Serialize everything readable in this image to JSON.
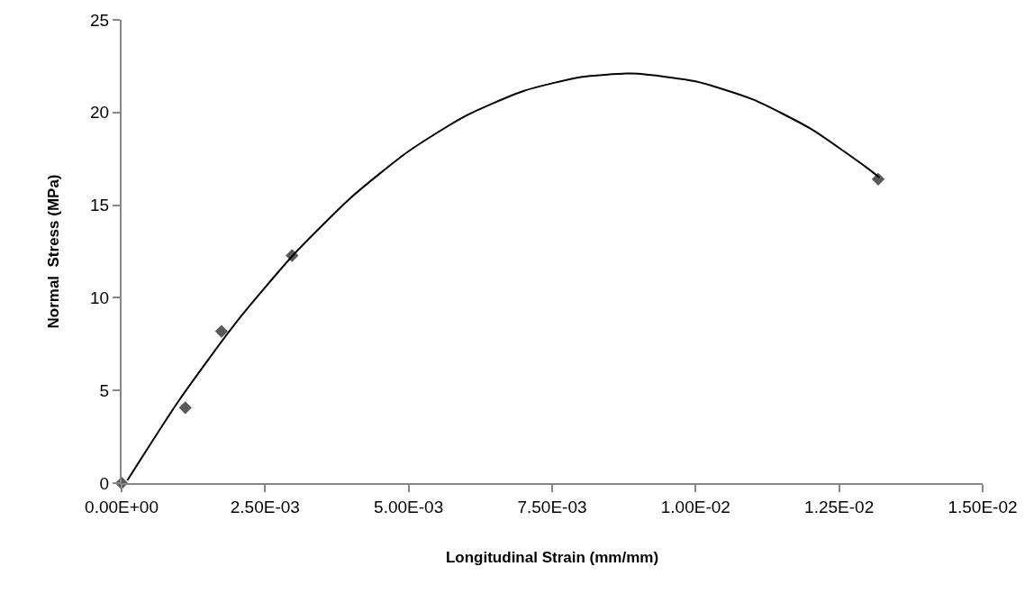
{
  "chart_data": {
    "type": "scatter",
    "xlabel": "Longitudinal Strain (mm/mm)",
    "ylabel": "Normal  Stress (MPa)",
    "series": [
      {
        "color": "#595959",
        "marker": "diamond",
        "x": [
          0,
          0.00111,
          0.00174,
          0.00297,
          0.01318
        ],
        "values": [
          0,
          4.07,
          8.19,
          12.28,
          16.4
        ]
      },
      {
        "type": "line",
        "color": "#000000",
        "marker": "none",
        "line_style": "solid",
        "x": [
          0.0001,
          0.001,
          0.002,
          0.003,
          0.004,
          0.005,
          0.006,
          0.007,
          0.008,
          0.0088,
          0.009,
          0.01,
          0.011,
          0.012,
          0.013,
          0.0132
        ],
        "values": [
          0.15,
          4.46,
          8.69,
          12.34,
          15.42,
          17.91,
          19.83,
          21.16,
          21.91,
          22.1,
          22.09,
          21.68,
          20.7,
          19.13,
          16.98,
          16.49
        ]
      }
    ],
    "xlim": [
      0,
      0.015
    ],
    "xticks": [
      {
        "value": 0,
        "label": "0.00E+00"
      },
      {
        "value": 0.0025,
        "label": "2.50E-03"
      },
      {
        "value": 0.005,
        "label": "5.00E-03"
      },
      {
        "value": 0.0075,
        "label": "7.50E-03"
      },
      {
        "value": 0.01,
        "label": "1.00E-02"
      },
      {
        "value": 0.0125,
        "label": "1.25E-02"
      },
      {
        "value": 0.015,
        "label": "1.50E-02"
      }
    ],
    "ylim": [
      0,
      25
    ],
    "yticks": [
      0,
      5,
      10,
      15,
      20,
      25
    ]
  }
}
